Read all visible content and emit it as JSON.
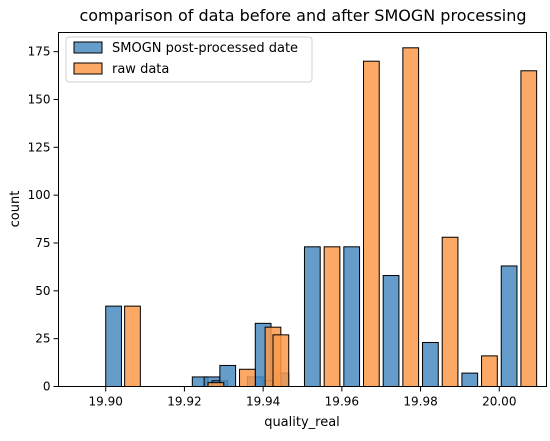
{
  "chart_data": {
    "type": "bar",
    "title": "comparison of data  before and after SMOGN processing",
    "xlabel": "quality_real",
    "ylabel": "count",
    "xlim": [
      19.888,
      20.012
    ],
    "ylim": [
      0,
      185
    ],
    "x_ticks": [
      19.9,
      19.92,
      19.94,
      19.96,
      19.98,
      20.0
    ],
    "x_tick_labels": [
      "19.90",
      "19.92",
      "19.94",
      "19.96",
      "19.98",
      "20.00"
    ],
    "y_ticks": [
      0,
      25,
      50,
      75,
      100,
      125,
      150,
      175
    ],
    "y_tick_labels": [
      "0",
      "25",
      "50",
      "75",
      "100",
      "125",
      "150",
      "175"
    ],
    "grid": false,
    "legend_position": "upper-left",
    "series": [
      {
        "name": "SMOGN post-processed date",
        "color": "#4a8bc0",
        "opacity": 0.85,
        "bar_width": 0.004,
        "points": [
          {
            "x": 19.9,
            "y": 42
          },
          {
            "x": 19.922,
            "y": 5
          },
          {
            "x": 19.925,
            "y": 5
          },
          {
            "x": 19.927,
            "y": 3
          },
          {
            "x": 19.929,
            "y": 11
          },
          {
            "x": 19.936,
            "y": 5
          },
          {
            "x": 19.938,
            "y": 33
          },
          {
            "x": 19.9406,
            "y": 3
          },
          {
            "x": 19.9425,
            "y": 7
          },
          {
            "x": 19.9505,
            "y": 73
          },
          {
            "x": 19.9605,
            "y": 73
          },
          {
            "x": 19.9705,
            "y": 58
          },
          {
            "x": 19.9805,
            "y": 23
          },
          {
            "x": 19.9905,
            "y": 7
          },
          {
            "x": 20.0005,
            "y": 63
          }
        ]
      },
      {
        "name": "raw data",
        "color": "#fb9a4a",
        "opacity": 0.85,
        "bar_width": 0.004,
        "points": [
          {
            "x": 19.9048,
            "y": 42
          },
          {
            "x": 19.926,
            "y": 2
          },
          {
            "x": 19.934,
            "y": 9
          },
          {
            "x": 19.9405,
            "y": 31
          },
          {
            "x": 19.9425,
            "y": 27
          },
          {
            "x": 19.9555,
            "y": 73
          },
          {
            "x": 19.9655,
            "y": 170
          },
          {
            "x": 19.9755,
            "y": 177
          },
          {
            "x": 19.9855,
            "y": 78
          },
          {
            "x": 19.9955,
            "y": 16
          },
          {
            "x": 20.0055,
            "y": 165
          }
        ]
      }
    ]
  }
}
